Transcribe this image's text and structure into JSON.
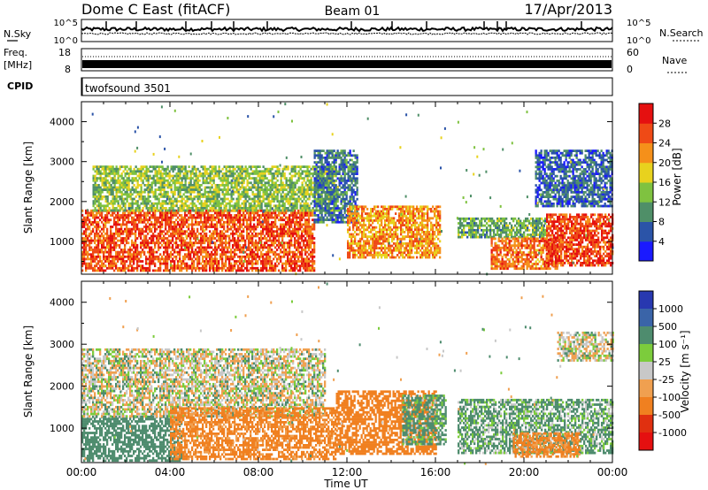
{
  "header": {
    "station": "Dome C East (fitACF)",
    "beam": "Beam 01",
    "date": "17/Apr/2013"
  },
  "noise_panel": {
    "left_label": "N.Sky",
    "right_label": "N.Search",
    "left_ticks": [
      "10^5",
      "10^0"
    ],
    "right_ticks": [
      "10^5",
      "10^0"
    ]
  },
  "freq_panel": {
    "left_label_1": "Freq.",
    "left_label_2": "[MHz]",
    "right_label": "Nave",
    "left_ticks": [
      "18",
      "8"
    ],
    "right_ticks": [
      "60",
      "0"
    ]
  },
  "cpid_panel": {
    "label": "CPID",
    "program": "twofsound 3501"
  },
  "power_panel": {
    "ylabel": "Slant Range [km]",
    "colorbar_label": "Power [dB]",
    "colorbar_ticks": [
      "28",
      "24",
      "20",
      "16",
      "12",
      "8",
      "4"
    ]
  },
  "velocity_panel": {
    "ylabel": "Slant Range [km]",
    "colorbar_label": "Velocity [m s⁻¹]",
    "colorbar_ticks": [
      "1000",
      "500",
      "100",
      "25",
      "-25",
      "-100",
      "-500",
      "-1000"
    ]
  },
  "xaxis": {
    "label": "Time UT",
    "ticks": [
      "00:00",
      "04:00",
      "08:00",
      "12:00",
      "16:00",
      "20:00",
      "00:00"
    ]
  },
  "chart_data": [
    {
      "type": "heatmap",
      "title": "Power",
      "xlabel": "Time UT",
      "ylabel": "Slant Range [km]",
      "xlim": [
        0,
        24
      ],
      "ylim": [
        180,
        4500
      ],
      "yticks": [
        1000,
        2000,
        3000,
        4000
      ],
      "colorbar": {
        "label": "Power [dB]",
        "range": [
          0,
          32
        ],
        "ticks": [
          4,
          8,
          12,
          16,
          20,
          24,
          28
        ],
        "colors": [
          "#1a1aff",
          "#2b54a8",
          "#4f8f68",
          "#7fc240",
          "#e8d21e",
          "#f5901a",
          "#ef4a16",
          "#e51010"
        ]
      },
      "regions": [
        {
          "t_start": 0.0,
          "t_end": 10.5,
          "range_min": 300,
          "range_max": 1800,
          "power_db": 26
        },
        {
          "t_start": 0.5,
          "t_end": 11.5,
          "range_min": 1800,
          "range_max": 2900,
          "power_db": 14
        },
        {
          "t_start": 10.5,
          "t_end": 12.5,
          "range_min": 1500,
          "range_max": 3300,
          "power_db": 8
        },
        {
          "t_start": 12.0,
          "t_end": 16.2,
          "range_min": 600,
          "range_max": 1900,
          "power_db": 22
        },
        {
          "t_start": 17.0,
          "t_end": 21.0,
          "range_min": 1100,
          "range_max": 1600,
          "power_db": 12
        },
        {
          "t_start": 18.5,
          "t_end": 21.5,
          "range_min": 300,
          "range_max": 1100,
          "power_db": 24
        },
        {
          "t_start": 21.0,
          "t_end": 24.0,
          "range_min": 400,
          "range_max": 1700,
          "power_db": 27
        },
        {
          "t_start": 20.5,
          "t_end": 24.0,
          "range_min": 1900,
          "range_max": 3300,
          "power_db": 7
        }
      ]
    },
    {
      "type": "heatmap",
      "title": "Velocity",
      "xlabel": "Time UT",
      "ylabel": "Slant Range [km]",
      "xlim": [
        0,
        24
      ],
      "ylim": [
        180,
        4500
      ],
      "yticks": [
        1000,
        2000,
        3000,
        4000
      ],
      "colorbar": {
        "label": "Velocity [m s-1]",
        "ticks": [
          1000,
          500,
          100,
          25,
          -25,
          -100,
          -500,
          -1000
        ],
        "colors": [
          "#2838b0",
          "#3a64a8",
          "#4e8c6e",
          "#7ccc3c",
          "#c8c8c8",
          "#f0a050",
          "#f08020",
          "#e03010",
          "#e51010"
        ]
      },
      "regions": [
        {
          "t_start": 0.0,
          "t_end": 4.5,
          "range_min": 250,
          "range_max": 1300,
          "velocity": 150
        },
        {
          "t_start": 0.0,
          "t_end": 11.0,
          "range_min": 1300,
          "range_max": 2900,
          "velocity": 0
        },
        {
          "t_start": 4.0,
          "t_end": 11.5,
          "range_min": 250,
          "range_max": 1500,
          "velocity": -150
        },
        {
          "t_start": 11.5,
          "t_end": 16.0,
          "range_min": 400,
          "range_max": 1900,
          "velocity": -200
        },
        {
          "t_start": 14.5,
          "t_end": 16.5,
          "range_min": 600,
          "range_max": 1800,
          "velocity": 100
        },
        {
          "t_start": 17.0,
          "t_end": 24.0,
          "range_min": 400,
          "range_max": 1700,
          "velocity": 80
        },
        {
          "t_start": 19.5,
          "t_end": 22.5,
          "range_min": 350,
          "range_max": 900,
          "velocity": -150
        },
        {
          "t_start": 21.5,
          "t_end": 24.0,
          "range_min": 2600,
          "range_max": 3300,
          "velocity": 0
        }
      ]
    }
  ]
}
